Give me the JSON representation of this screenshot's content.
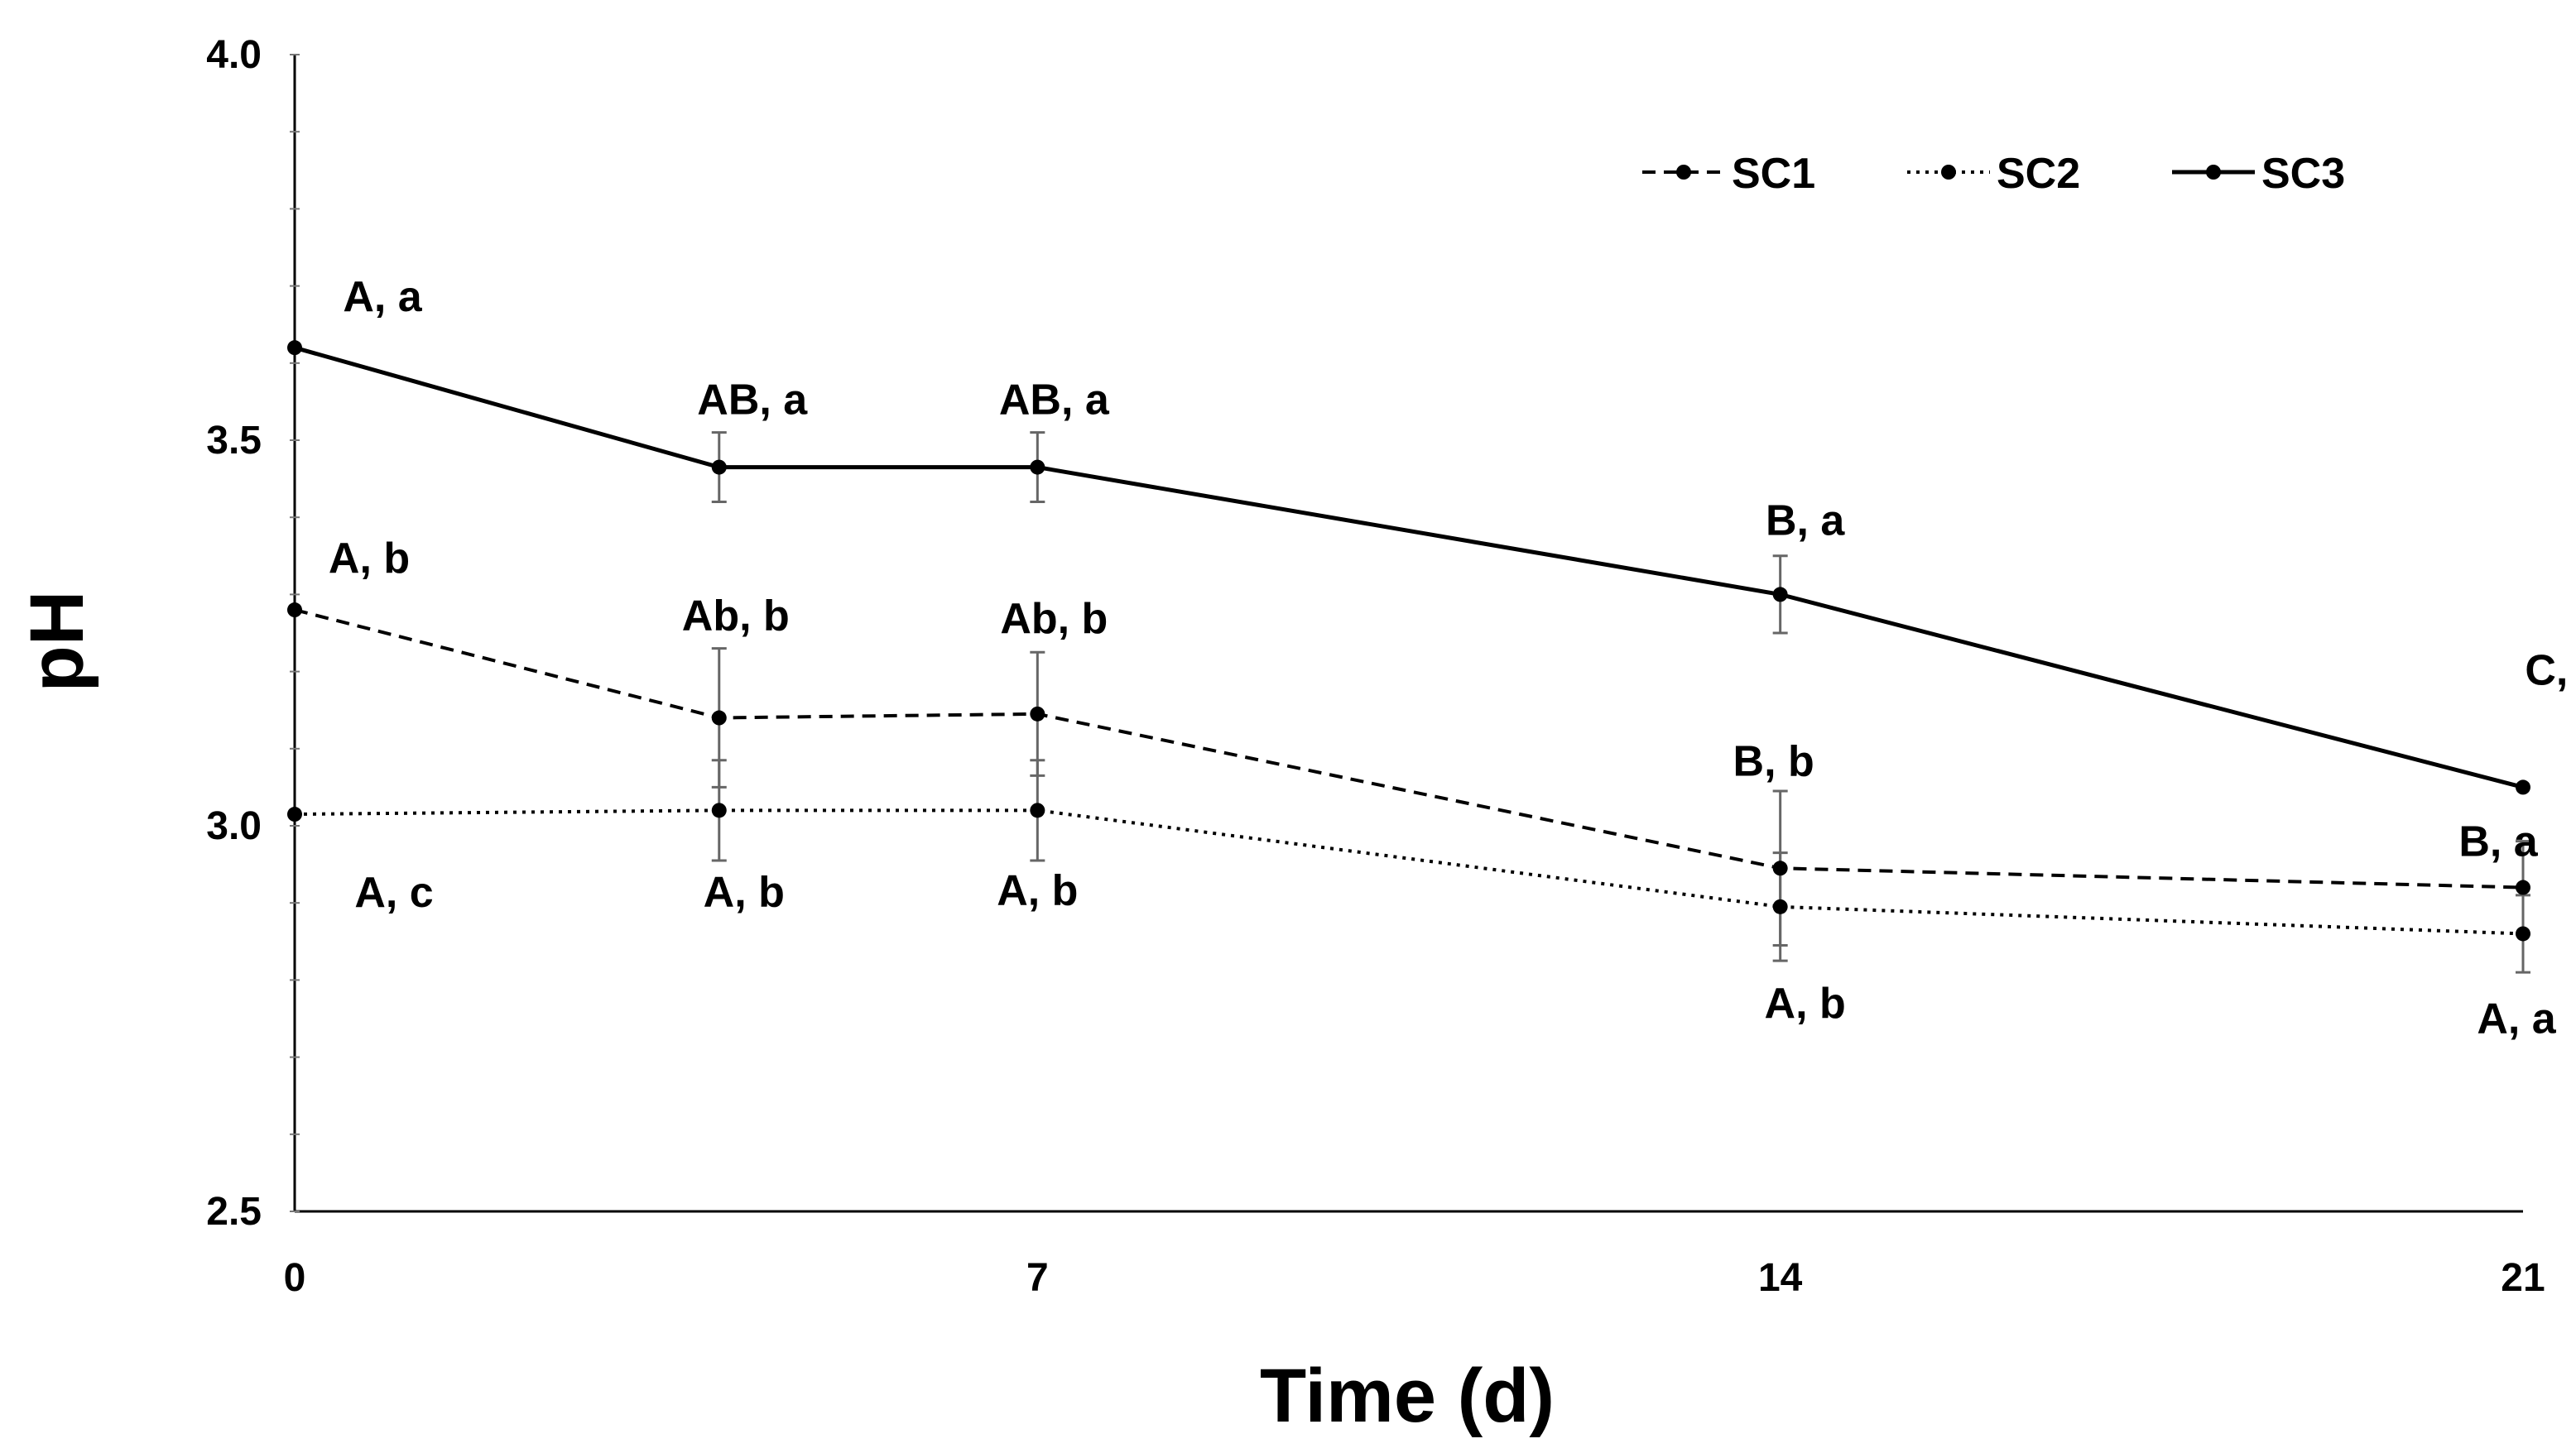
{
  "chart_data": {
    "type": "line",
    "title": "",
    "xlabel": "Time (d)",
    "ylabel": "pH",
    "xlim": [
      0,
      21
    ],
    "ylim": [
      2.5,
      4.0
    ],
    "xticks": [
      "0",
      "7",
      "14",
      "21"
    ],
    "yticks": [
      "2.5",
      "3.0",
      "3.5",
      "4.0"
    ],
    "x": [
      0,
      4,
      7,
      14,
      21
    ],
    "legend_position": "top-right",
    "series": [
      {
        "name": "SC1",
        "style": "dashed",
        "values": [
          3.28,
          3.14,
          3.145,
          2.945,
          2.92
        ],
        "errors": [
          0,
          0.09,
          0.08,
          0.1,
          0.06
        ],
        "labels": [
          "A, b",
          "Ab, b",
          "Ab, b",
          "B, b",
          "B, a"
        ]
      },
      {
        "name": "SC2",
        "style": "dotted",
        "values": [
          3.015,
          3.02,
          3.02,
          2.895,
          2.86
        ],
        "errors": [
          0,
          0.065,
          0.065,
          0.07,
          0.05
        ],
        "labels": [
          "A, c",
          "A, b",
          "A, b",
          "A, b",
          "A, a"
        ]
      },
      {
        "name": "SC3",
        "style": "solid",
        "values": [
          3.62,
          3.465,
          3.465,
          3.3,
          3.05
        ],
        "errors": [
          0,
          0.045,
          0.045,
          0.05,
          0
        ],
        "labels": [
          "A, a",
          "AB, a",
          "AB, a",
          "B, a",
          "C, a"
        ]
      }
    ]
  }
}
